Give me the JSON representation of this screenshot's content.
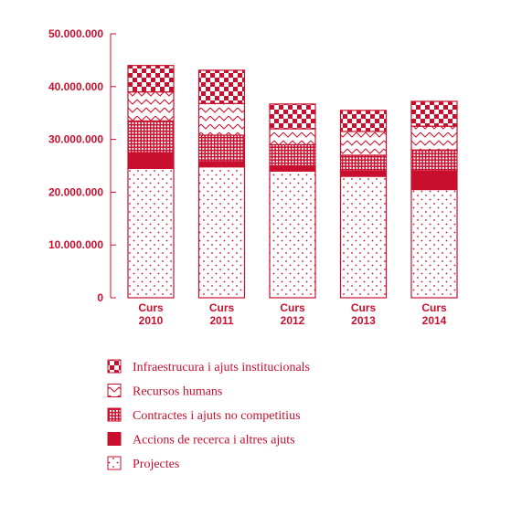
{
  "chart_data": {
    "type": "bar",
    "stacked": true,
    "categories": [
      [
        "Curs",
        "2010"
      ],
      [
        "Curs",
        "2011"
      ],
      [
        "Curs",
        "2012"
      ],
      [
        "Curs",
        "2013"
      ],
      [
        "Curs",
        "2014"
      ]
    ],
    "series": [
      {
        "name": "Projectes",
        "pattern": "dots",
        "values": [
          24500000,
          24800000,
          24000000,
          23000000,
          20500000
        ]
      },
      {
        "name": "Accions de recerca i altres ajuts",
        "pattern": "solid",
        "values": [
          3000000,
          1000000,
          1000000,
          1000000,
          3500000
        ]
      },
      {
        "name": "Contractes i ajuts no competitius",
        "pattern": "grid",
        "values": [
          6000000,
          5000000,
          4000000,
          3000000,
          4000000
        ]
      },
      {
        "name": "Recursos humans",
        "pattern": "zigzag",
        "values": [
          5500000,
          6000000,
          3000000,
          4500000,
          4500000
        ]
      },
      {
        "name": "Infraestrucura i ajuts institucionals",
        "pattern": "checker",
        "values": [
          5000000,
          6300000,
          4700000,
          4000000,
          4700000
        ]
      }
    ],
    "legend_order": [
      "Infraestrucura i ajuts institucionals",
      "Recursos humans",
      "Contractes i ajuts no competitius",
      "Accions de recerca i altres ajuts",
      "Projectes"
    ],
    "y_ticks": [
      "0",
      "10.000.000",
      "20.000.000",
      "30.000.000",
      "40.000.000",
      "50.000.000"
    ],
    "ylim": [
      0,
      50000000
    ],
    "grid": false,
    "legend_position": "bottom-left",
    "color": "#c8102e"
  }
}
